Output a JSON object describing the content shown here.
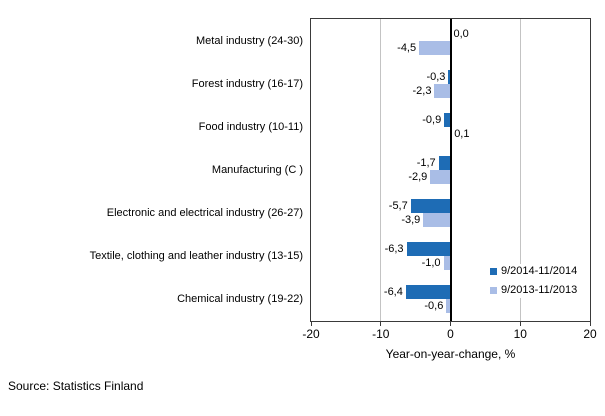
{
  "chart_data": {
    "type": "bar",
    "orientation": "horizontal",
    "title": "",
    "categories": [
      "Metal industry (24-30)",
      "Forest industry (16-17)",
      "Food industry (10-11)",
      "Manufacturing (C )",
      "Electronic and electrical industry (26-27)",
      "Textile, clothing and leather industry (13-15)",
      "Chemical industry (19-22)"
    ],
    "series": [
      {
        "name": "9/2014-11/2014",
        "color": "#1e6cb5",
        "values": [
          0.0,
          -0.3,
          -0.9,
          -1.7,
          -5.7,
          -6.3,
          -6.4
        ],
        "labels": [
          "0,0",
          "-0,3",
          "-0,9",
          "-1,7",
          "-5,7",
          "-6,3",
          "-6,4"
        ]
      },
      {
        "name": "9/2013-11/2013",
        "color": "#a9bde6",
        "values": [
          -4.5,
          -2.3,
          0.1,
          -2.9,
          -3.9,
          -1.0,
          -0.6
        ],
        "labels": [
          "-4,5",
          "-2,3",
          "0,1",
          "-2,9",
          "-3,9",
          "-1,0",
          "-0,6"
        ]
      }
    ],
    "xlabel": "Year-on-year-change, %",
    "xlim": [
      -20,
      20
    ],
    "xticks": [
      -20,
      -10,
      0,
      10,
      20
    ],
    "xtick_labels": [
      "-20",
      "-10",
      "0",
      "10",
      "20"
    ],
    "gridlines": [
      -10,
      10
    ],
    "grid": "vertical-only",
    "legend_position": "inside-right"
  },
  "source": {
    "label": "Source: Statistics Finland"
  },
  "colors": {
    "series_dark": "#1e6cb5",
    "series_light": "#a9bde6",
    "gridline": "#c3c3c3",
    "axis": "#000000",
    "plot_border": "#3a3a3a",
    "background": "#ffffff",
    "text": "#000000"
  }
}
